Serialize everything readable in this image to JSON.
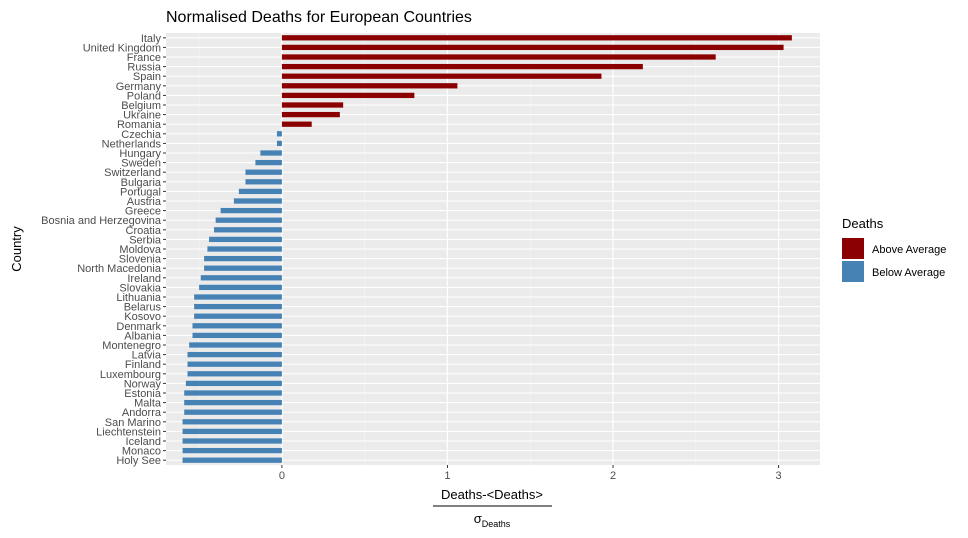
{
  "chart_data": {
    "type": "bar",
    "orientation": "horizontal",
    "title": "Normalised Deaths for European Countries",
    "ylabel": "Country",
    "xlabel_numerator": "Deaths-<Deaths>",
    "xlabel_denominator_symbol": "σ",
    "xlabel_denominator_subscript": "Deaths",
    "xlim": [
      -0.7,
      3.25
    ],
    "xticks": [
      0,
      1,
      2,
      3
    ],
    "grid": true,
    "legend_position": "right",
    "legend": {
      "title": "Deaths",
      "items": [
        {
          "label": "Above Average",
          "color": "#8b0000"
        },
        {
          "label": "Below Average",
          "color": "#4682b4"
        }
      ]
    },
    "categories": [
      "Italy",
      "United Kingdom",
      "France",
      "Russia",
      "Spain",
      "Germany",
      "Poland",
      "Belgium",
      "Ukraine",
      "Romania",
      "Czechia",
      "Netherlands",
      "Hungary",
      "Sweden",
      "Switzerland",
      "Bulgaria",
      "Portugal",
      "Austria",
      "Greece",
      "Bosnia and Herzegovina",
      "Croatia",
      "Serbia",
      "Moldova",
      "Slovenia",
      "North Macedonia",
      "Ireland",
      "Slovakia",
      "Lithuania",
      "Belarus",
      "Kosovo",
      "Denmark",
      "Albania",
      "Montenegro",
      "Latvia",
      "Finland",
      "Luxembourg",
      "Norway",
      "Estonia",
      "Malta",
      "Andorra",
      "San Marino",
      "Liechtenstein",
      "Iceland",
      "Monaco",
      "Holy See"
    ],
    "values": [
      3.08,
      3.03,
      2.62,
      2.18,
      1.93,
      1.06,
      0.8,
      0.37,
      0.35,
      0.18,
      -0.03,
      -0.03,
      -0.13,
      -0.16,
      -0.22,
      -0.22,
      -0.26,
      -0.29,
      -0.37,
      -0.4,
      -0.41,
      -0.44,
      -0.45,
      -0.47,
      -0.47,
      -0.49,
      -0.5,
      -0.53,
      -0.53,
      -0.53,
      -0.54,
      -0.54,
      -0.56,
      -0.57,
      -0.57,
      -0.57,
      -0.58,
      -0.59,
      -0.59,
      -0.59,
      -0.6,
      -0.6,
      -0.6,
      -0.6,
      -0.6
    ],
    "colors": {
      "above": "#8b0000",
      "below": "#4682b4"
    }
  }
}
